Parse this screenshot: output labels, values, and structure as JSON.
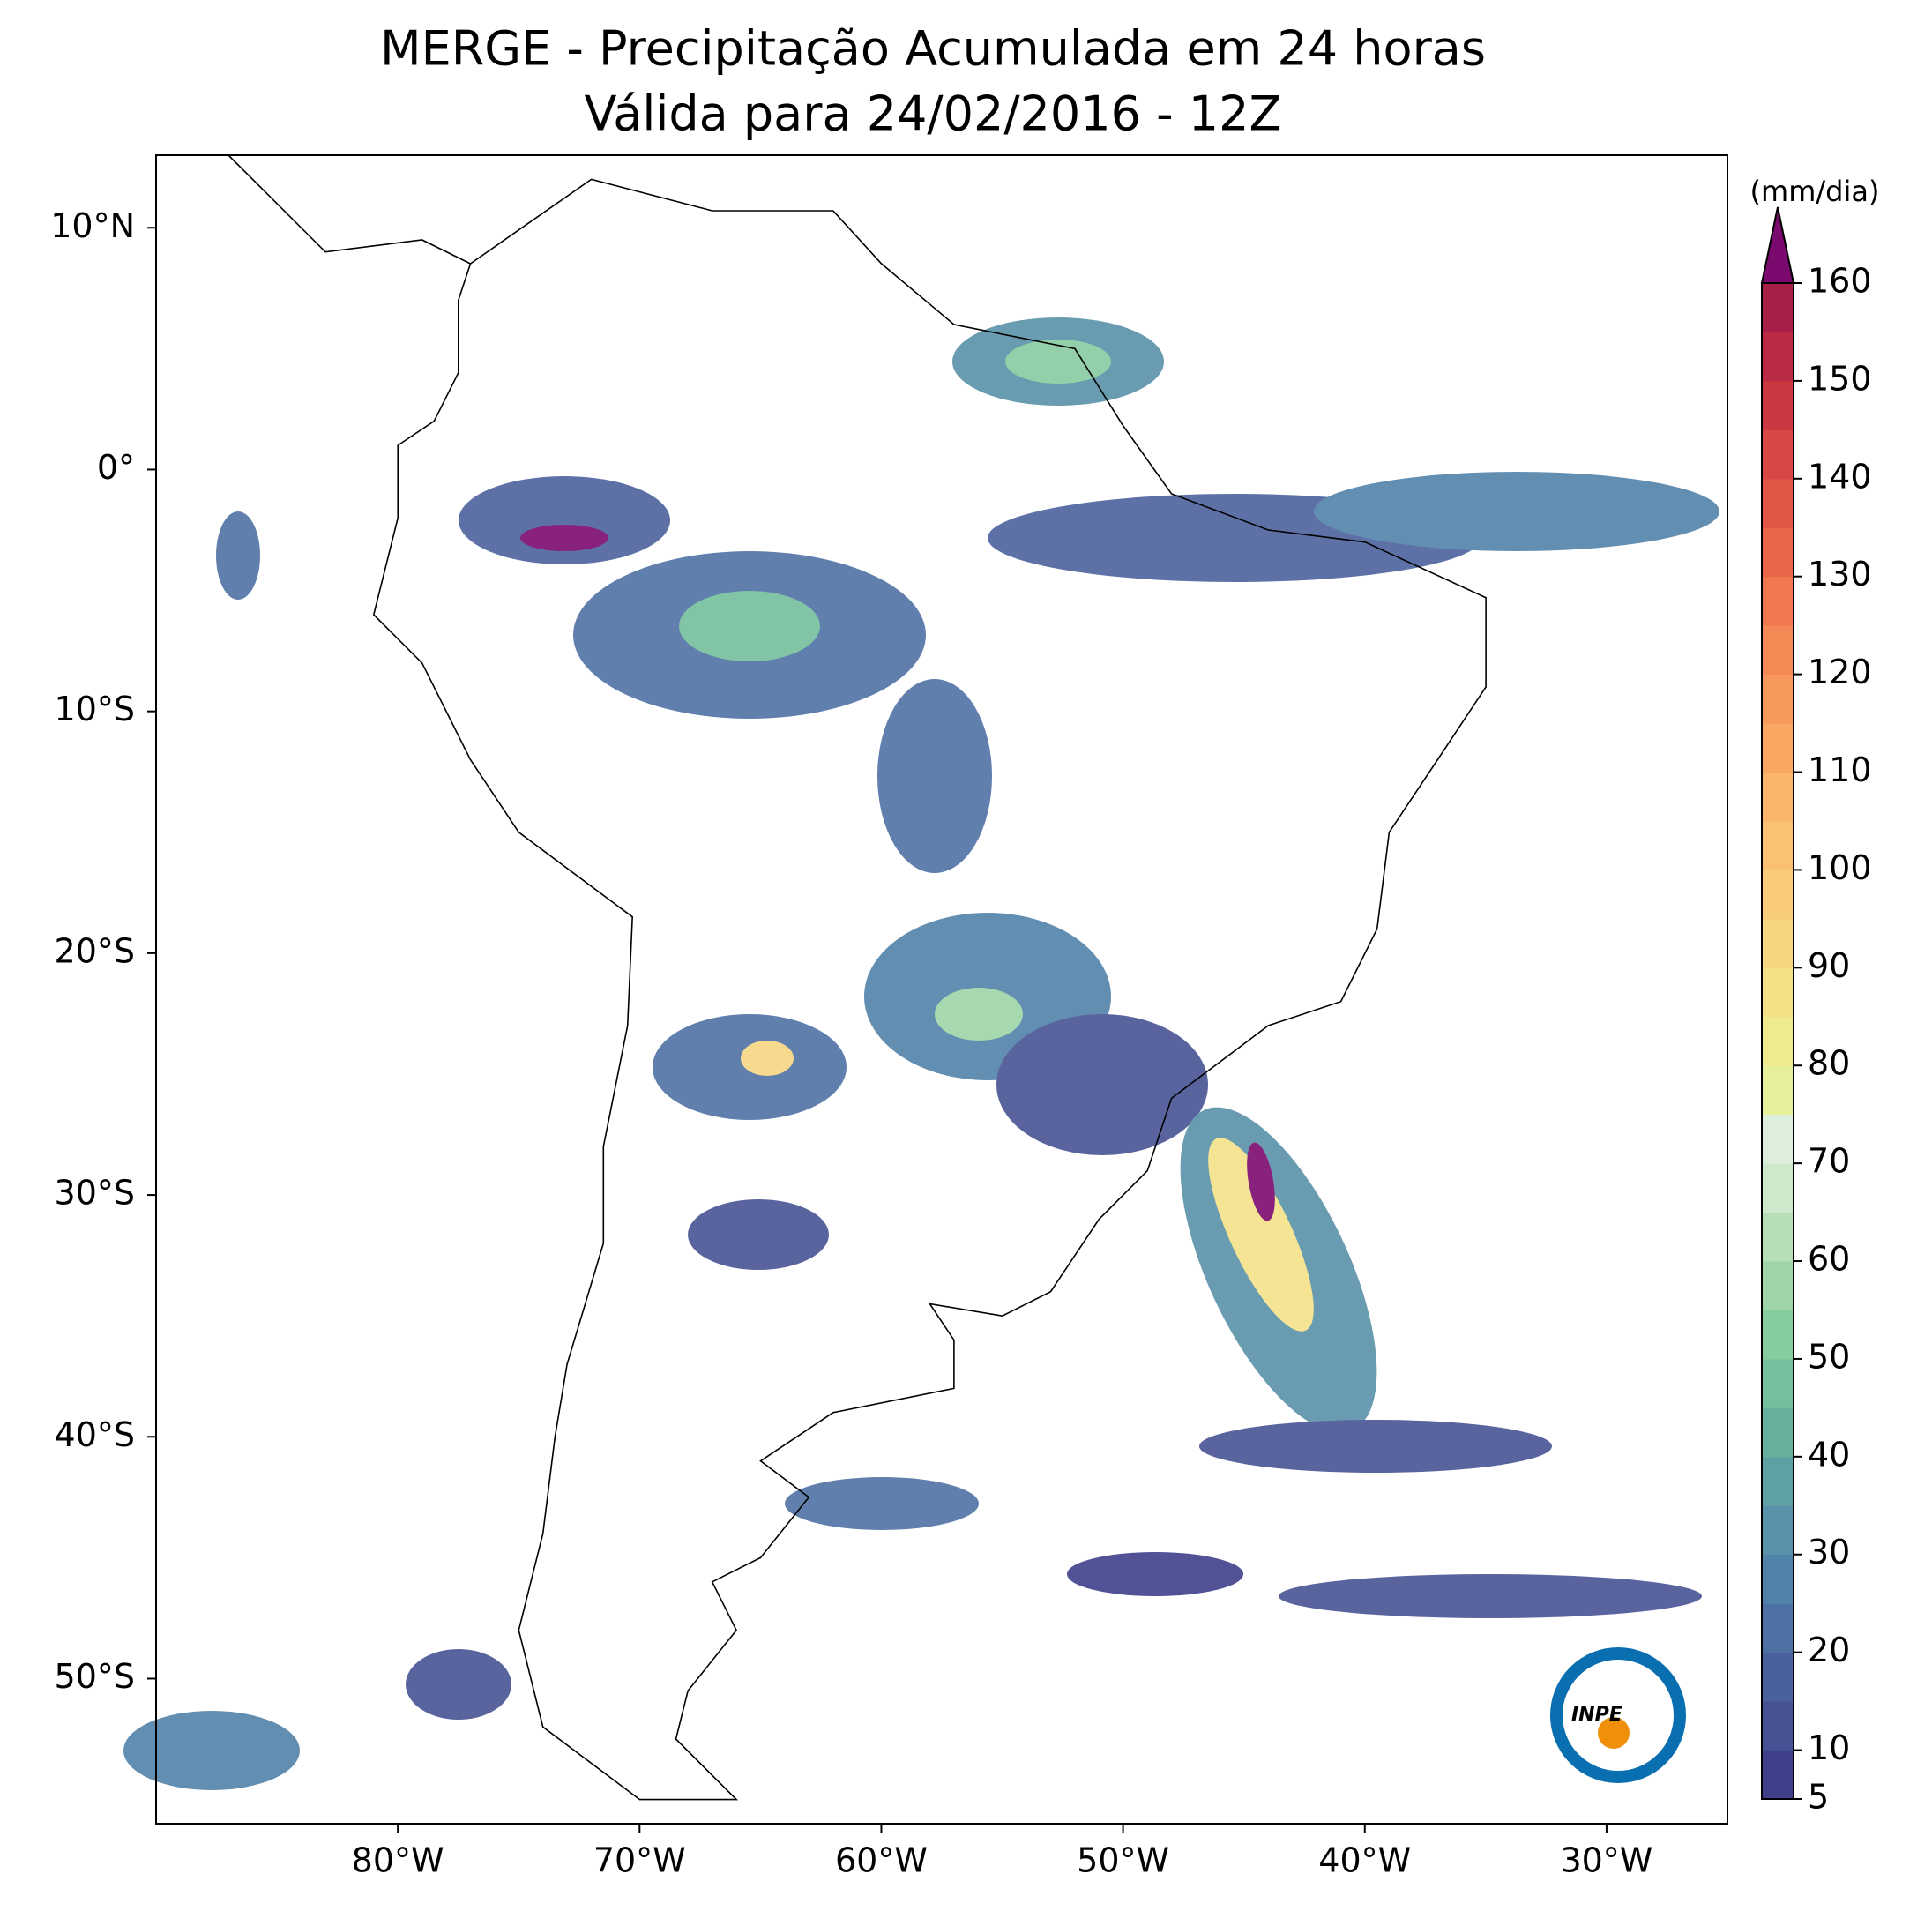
{
  "chart_data": {
    "type": "map",
    "title": "MERGE - Precipitação Acumulada em 24 horas",
    "subtitle": "Válida para 24/02/2016 - 12Z",
    "xlim": [
      -90,
      -25
    ],
    "ylim": [
      -56,
      13
    ],
    "xticks": [
      {
        "value": -80,
        "label": "80°W"
      },
      {
        "value": -70,
        "label": "70°W"
      },
      {
        "value": -60,
        "label": "60°W"
      },
      {
        "value": -50,
        "label": "50°W"
      },
      {
        "value": -40,
        "label": "40°W"
      },
      {
        "value": -30,
        "label": "30°W"
      }
    ],
    "yticks": [
      {
        "value": 10,
        "label": "10°N"
      },
      {
        "value": 0,
        "label": "0°"
      },
      {
        "value": -10,
        "label": "10°S"
      },
      {
        "value": -20,
        "label": "20°S"
      },
      {
        "value": -30,
        "label": "30°S"
      },
      {
        "value": -40,
        "label": "40°S"
      },
      {
        "value": -50,
        "label": "50°S"
      }
    ],
    "colorbar": {
      "label": "(mm/dia)",
      "clim": [
        5,
        160
      ],
      "ticks": [
        5,
        10,
        20,
        30,
        40,
        50,
        60,
        70,
        80,
        90,
        100,
        110,
        120,
        130,
        140,
        150,
        160
      ],
      "colors": [
        "#3f3f8c",
        "#475294",
        "#4b619d",
        "#4e71a4",
        "#5182a9",
        "#5891a8",
        "#5fa0a3",
        "#67b09e",
        "#74bf9c",
        "#87cba0",
        "#9ed5a8",
        "#b6dfb8",
        "#cde8cb",
        "#ddeedd",
        "#e6ef9a",
        "#eeea90",
        "#f3e187",
        "#f6d680",
        "#f8cc7a",
        "#fac173",
        "#fab46b",
        "#f9a763",
        "#f7985c",
        "#f48955",
        "#f0784e",
        "#ea6649",
        "#e25645",
        "#d84743",
        "#cb3842",
        "#bb2a44",
        "#a51f47"
      ],
      "extend_color": "#7b0a6f"
    },
    "logo_text": "INPE"
  }
}
